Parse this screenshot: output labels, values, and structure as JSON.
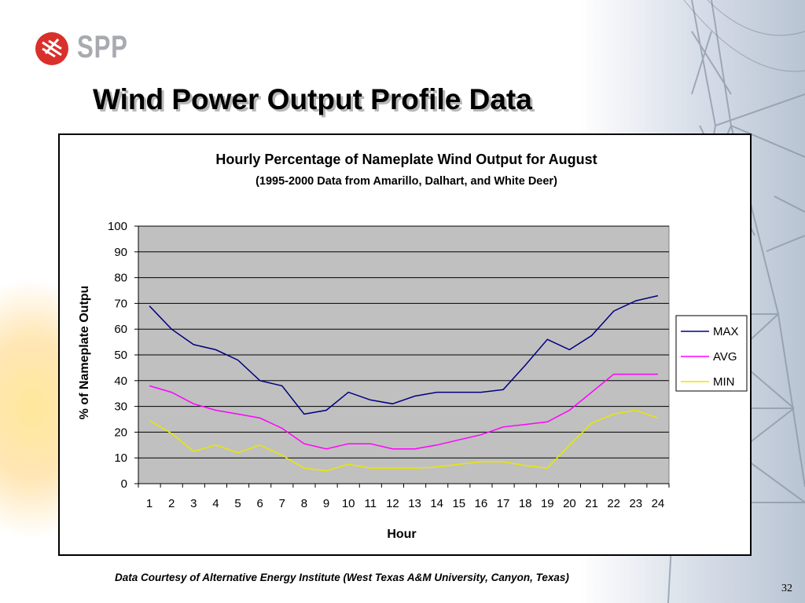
{
  "slide": {
    "logo_text": "SPP",
    "title": "Wind Power Output Profile Data",
    "footer_credit": "Data Courtesy of Alternative Energy Institute (West Texas A&M University, Canyon, Texas)",
    "page_number": "32"
  },
  "colors": {
    "plot_background": "#c0c0c0",
    "logo_red": "#d9302c",
    "logo_gray": "#a9aab0"
  },
  "chart_data": {
    "type": "line",
    "title": "Hourly Percentage of Nameplate Wind Output for August",
    "subtitle": "(1995-2000 Data from Amarillo, Dalhart, and White Deer)",
    "xlabel": "Hour",
    "ylabel": "% of Nameplate Outpu",
    "x": [
      1,
      2,
      3,
      4,
      5,
      6,
      7,
      8,
      9,
      10,
      11,
      12,
      13,
      14,
      15,
      16,
      17,
      18,
      19,
      20,
      21,
      22,
      23,
      24
    ],
    "ylim": [
      0,
      100
    ],
    "yticks": [
      0,
      10,
      20,
      30,
      40,
      50,
      60,
      70,
      80,
      90,
      100
    ],
    "grid": true,
    "legend_position": "right",
    "series": [
      {
        "name": "MAX",
        "color": "#000080",
        "values": [
          69,
          60,
          54,
          52,
          48,
          40,
          38,
          27,
          28.5,
          35.5,
          32.5,
          31,
          34,
          35.5,
          35.5,
          35.5,
          36.5,
          46,
          56,
          52,
          57.5,
          67,
          71,
          73
        ]
      },
      {
        "name": "AVG",
        "color": "#ff00ff",
        "values": [
          38,
          35.5,
          31,
          28.5,
          27,
          25.5,
          21.5,
          15.5,
          13.5,
          15.5,
          15.5,
          13.5,
          13.5,
          15,
          17,
          19,
          22,
          23,
          24,
          28.5,
          35.5,
          42.5,
          42.5,
          42.5
        ]
      },
      {
        "name": "MIN",
        "color": "#e8e800",
        "values": [
          24.5,
          19.5,
          12.5,
          15,
          12,
          15,
          11,
          6,
          5,
          7.5,
          6,
          6,
          6,
          6.5,
          7.5,
          8.5,
          8.5,
          7,
          6,
          15,
          23.5,
          27,
          28.5,
          25.5
        ]
      }
    ]
  }
}
